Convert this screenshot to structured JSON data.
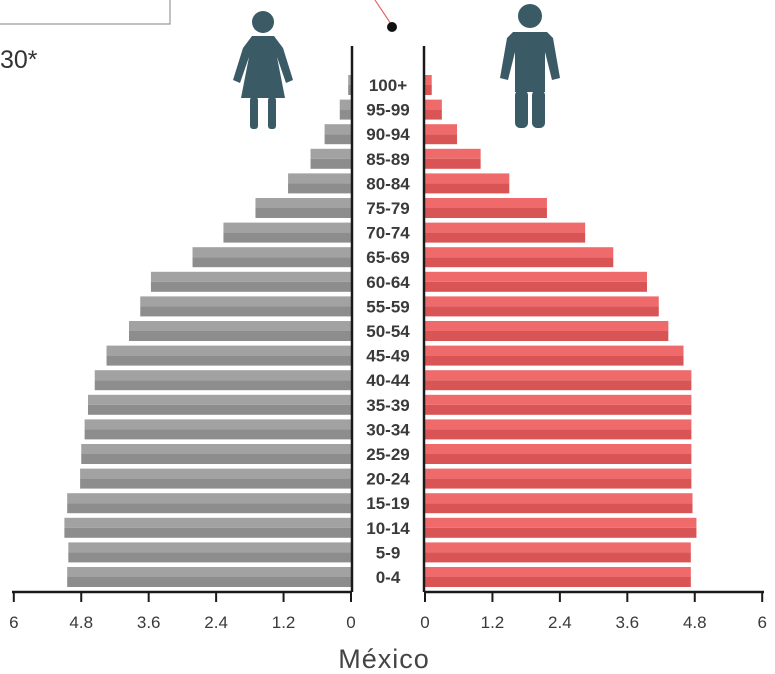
{
  "header": {
    "year_fragment": "30*"
  },
  "chart_data": {
    "type": "bar",
    "orientation": "horizontal-pyramid",
    "title": "México",
    "categories": [
      "0-4",
      "5-9",
      "10-14",
      "15-19",
      "20-24",
      "25-29",
      "30-34",
      "35-39",
      "40-44",
      "45-49",
      "50-54",
      "55-59",
      "60-64",
      "65-69",
      "70-74",
      "75-79",
      "80-84",
      "85-89",
      "90-94",
      "95-99",
      "100+"
    ],
    "series": [
      {
        "side": "left",
        "icon": "woman-icon",
        "color": "#8d8d8d",
        "color_light": "#a2a2a2",
        "values": [
          5.05,
          5.03,
          5.1,
          5.05,
          4.82,
          4.8,
          4.74,
          4.68,
          4.56,
          4.35,
          3.95,
          3.75,
          3.56,
          2.82,
          2.27,
          1.7,
          1.12,
          0.72,
          0.47,
          0.2,
          0.05
        ]
      },
      {
        "side": "right",
        "icon": "man-icon",
        "color": "#d95555",
        "color_light": "#ef6b6b",
        "values": [
          4.73,
          4.73,
          4.83,
          4.76,
          4.74,
          4.74,
          4.74,
          4.74,
          4.74,
          4.6,
          4.33,
          4.16,
          3.95,
          3.35,
          2.85,
          2.17,
          1.5,
          0.99,
          0.57,
          0.3,
          0.12
        ]
      }
    ],
    "xlim": [
      0,
      6
    ],
    "left_ticks": [
      "6",
      "4.8",
      "3.6",
      "2.4",
      "1.2",
      "0"
    ],
    "right_ticks": [
      "0",
      "1.2",
      "2.4",
      "3.6",
      "4.8",
      "6"
    ],
    "grid": false,
    "colors": {
      "axis": "#1a1a1a",
      "icon": "#3a5a66",
      "text": "#3a3a3a"
    }
  }
}
